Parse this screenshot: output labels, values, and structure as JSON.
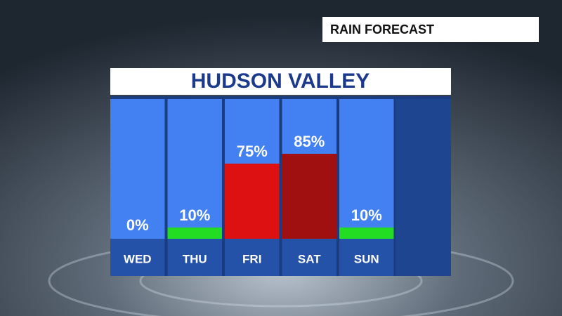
{
  "chart_data": {
    "type": "bar",
    "title": "HUDSON VALLEY",
    "subtitle": "RAIN FORECAST",
    "categories": [
      "WED",
      "THU",
      "FRI",
      "SAT",
      "SUN"
    ],
    "values": [
      0,
      10,
      75,
      85,
      10
    ],
    "value_labels": [
      "0%",
      "10%",
      "75%",
      "85%",
      "10%"
    ],
    "colors": [
      "#ffffff",
      "#22dd22",
      "#dd1111",
      "#a01010",
      "#22dd22"
    ]
  }
}
